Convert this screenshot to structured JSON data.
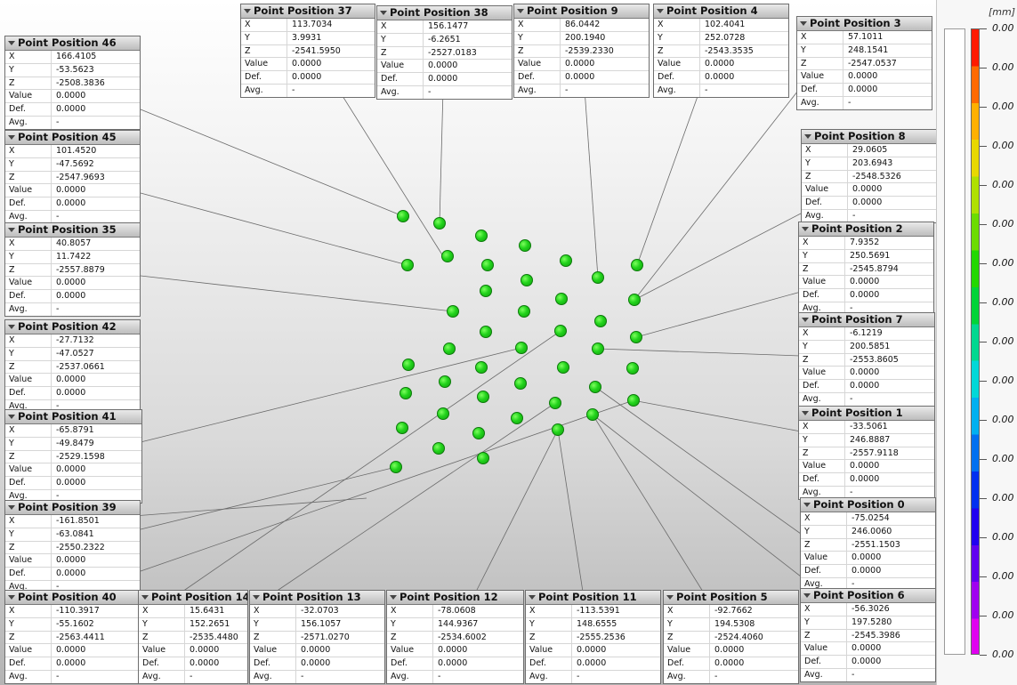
{
  "scale": {
    "unit": "[mm]",
    "labels": [
      "0.00",
      "0.00",
      "0.00",
      "0.00",
      "0.00",
      "0.00",
      "0.00",
      "0.00",
      "0.00",
      "0.00",
      "0.00",
      "0.00",
      "0.00",
      "0.00",
      "0.00",
      "0.00",
      "0.00"
    ],
    "colors": [
      "#ff1a00",
      "#ff6a00",
      "#ffb000",
      "#e8d800",
      "#b0e000",
      "#6cdc00",
      "#22d800",
      "#00d438",
      "#00d890",
      "#00d8d8",
      "#00b0f0",
      "#0070f0",
      "#0030f0",
      "#2000f0",
      "#6000f0",
      "#a000f0",
      "#e000f0"
    ]
  },
  "field_labels": [
    "X",
    "Y",
    "Z",
    "Value",
    "Def.",
    "Avg."
  ],
  "callouts": [
    {
      "title": "Point Position 46",
      "x": "166.4105",
      "y": "-53.5623",
      "z": "-2508.3836",
      "value": "0.0000",
      "def": "0.0000",
      "avg": "-"
    },
    {
      "title": "Point Position 45",
      "x": "101.4520",
      "y": "-47.5692",
      "z": "-2547.9693",
      "value": "0.0000",
      "def": "0.0000",
      "avg": "-"
    },
    {
      "title": "Point Position 35",
      "x": "40.8057",
      "y": "11.7422",
      "z": "-2557.8879",
      "value": "0.0000",
      "def": "0.0000",
      "avg": "-"
    },
    {
      "title": "Point Position 42",
      "x": "-27.7132",
      "y": "-47.0527",
      "z": "-2537.0661",
      "value": "0.0000",
      "def": "0.0000",
      "avg": "-"
    },
    {
      "title": "Point Position 41",
      "x": "-65.8791",
      "y": "-49.8479",
      "z": "-2529.1598",
      "value": "0.0000",
      "def": "0.0000",
      "avg": "-"
    },
    {
      "title": "Point Position 39",
      "x": "-161.8501",
      "y": "-63.0841",
      "z": "-2550.2322",
      "value": "0.0000",
      "def": "0.0000",
      "avg": "-"
    },
    {
      "title": "Point Position 37",
      "x": "113.7034",
      "y": "3.9931",
      "z": "-2541.5950",
      "value": "0.0000",
      "def": "0.0000",
      "avg": "-"
    },
    {
      "title": "Point Position 38",
      "x": "156.1477",
      "y": "-6.2651",
      "z": "-2527.0183",
      "value": "0.0000",
      "def": "0.0000",
      "avg": "-"
    },
    {
      "title": "Point Position 9",
      "x": "86.0442",
      "y": "200.1940",
      "z": "-2539.2330",
      "value": "0.0000",
      "def": "0.0000",
      "avg": "-"
    },
    {
      "title": "Point Position 4",
      "x": "102.4041",
      "y": "252.0728",
      "z": "-2543.3535",
      "value": "0.0000",
      "def": "0.0000",
      "avg": "-"
    },
    {
      "title": "Point Position 3",
      "x": "57.1011",
      "y": "248.1541",
      "z": "-2547.0537",
      "value": "0.0000",
      "def": "0.0000",
      "avg": "-"
    },
    {
      "title": "Point Position 8",
      "x": "29.0605",
      "y": "203.6943",
      "z": "-2548.5326",
      "value": "0.0000",
      "def": "0.0000",
      "avg": "-"
    },
    {
      "title": "Point Position 2",
      "x": "7.9352",
      "y": "250.5691",
      "z": "-2545.8794",
      "value": "0.0000",
      "def": "0.0000",
      "avg": "-"
    },
    {
      "title": "Point Position 7",
      "x": "-6.1219",
      "y": "200.5851",
      "z": "-2553.8605",
      "value": "0.0000",
      "def": "0.0000",
      "avg": "-"
    },
    {
      "title": "Point Position 1",
      "x": "-33.5061",
      "y": "246.8887",
      "z": "-2557.9118",
      "value": "0.0000",
      "def": "0.0000",
      "avg": "-"
    },
    {
      "title": "Point Position 0",
      "x": "-75.0254",
      "y": "246.0060",
      "z": "-2551.1503",
      "value": "0.0000",
      "def": "0.0000",
      "avg": "-"
    },
    {
      "title": "Point Position 6",
      "x": "-56.3026",
      "y": "197.5280",
      "z": "-2545.3986",
      "value": "0.0000",
      "def": "0.0000",
      "avg": "-"
    },
    {
      "title": "Point Position 40",
      "x": "-110.3917",
      "y": "-55.1602",
      "z": "-2563.4411",
      "value": "0.0000",
      "def": "0.0000",
      "avg": "-"
    },
    {
      "title": "Point Position 14",
      "x": "15.6431",
      "y": "152.2651",
      "z": "-2535.4480",
      "value": "0.0000",
      "def": "0.0000",
      "avg": "-"
    },
    {
      "title": "Point Position 13",
      "x": "-32.0703",
      "y": "156.1057",
      "z": "-2571.0270",
      "value": "0.0000",
      "def": "0.0000",
      "avg": "-"
    },
    {
      "title": "Point Position 12",
      "x": "-78.0608",
      "y": "144.9367",
      "z": "-2534.6002",
      "value": "0.0000",
      "def": "0.0000",
      "avg": "-"
    },
    {
      "title": "Point Position 11",
      "x": "-113.5391",
      "y": "148.6555",
      "z": "-2555.2536",
      "value": "0.0000",
      "def": "0.0000",
      "avg": "-"
    },
    {
      "title": "Point Position 5",
      "x": "-92.7662",
      "y": "194.5308",
      "z": "-2524.4060",
      "value": "0.0000",
      "def": "0.0000",
      "avg": "-"
    }
  ]
}
